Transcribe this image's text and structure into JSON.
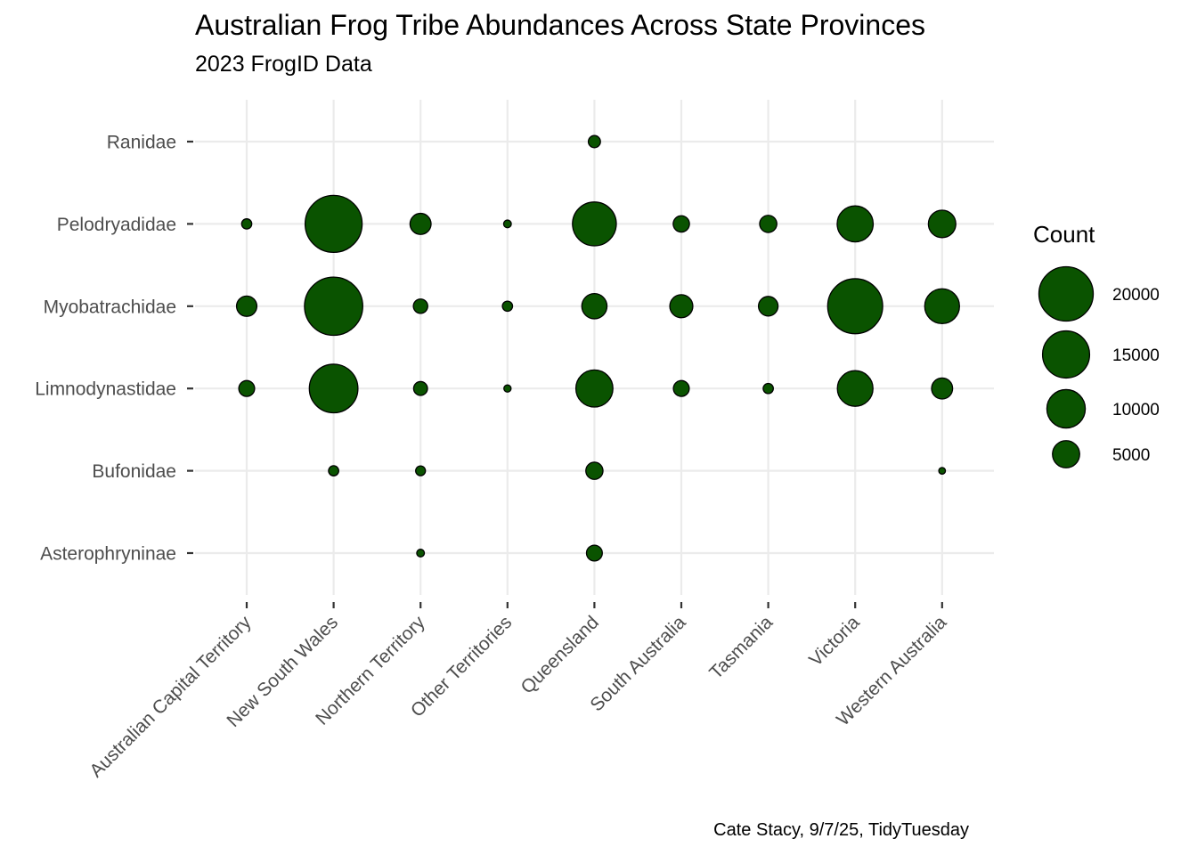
{
  "chart_data": {
    "type": "scatter",
    "title": "Australian Frog Tribe Abundances Across State Provinces",
    "subtitle": "2023 FrogID Data",
    "caption": "Cate Stacy, 9/7/25, TidyTuesday",
    "x_categories": [
      "Australian Capital Territory",
      "New South Wales",
      "Northern Territory",
      "Other Territories",
      "Queensland",
      "South Australia",
      "Tasmania",
      "Victoria",
      "Western Australia"
    ],
    "y_categories": [
      "Asterophryninae",
      "Bufonidae",
      "Limnodynastidae",
      "Myobatrachidae",
      "Pelodryadidae",
      "Ranidae"
    ],
    "size_legend": {
      "title": "Count",
      "breaks": [
        5000,
        10000,
        15000,
        20000
      ]
    },
    "points": [
      {
        "x": "Queensland",
        "y": "Ranidae",
        "count": 1000
      },
      {
        "x": "Australian Capital Territory",
        "y": "Pelodryadidae",
        "count": 700
      },
      {
        "x": "New South Wales",
        "y": "Pelodryadidae",
        "count": 22000
      },
      {
        "x": "Northern Territory",
        "y": "Pelodryadidae",
        "count": 3000
      },
      {
        "x": "Other Territories",
        "y": "Pelodryadidae",
        "count": 400
      },
      {
        "x": "Queensland",
        "y": "Pelodryadidae",
        "count": 13000
      },
      {
        "x": "South Australia",
        "y": "Pelodryadidae",
        "count": 1800
      },
      {
        "x": "Tasmania",
        "y": "Pelodryadidae",
        "count": 2000
      },
      {
        "x": "Victoria",
        "y": "Pelodryadidae",
        "count": 8800
      },
      {
        "x": "Western Australia",
        "y": "Pelodryadidae",
        "count": 5100
      },
      {
        "x": "Australian Capital Territory",
        "y": "Myobatrachidae",
        "count": 2800
      },
      {
        "x": "New South Wales",
        "y": "Myobatrachidae",
        "count": 23000
      },
      {
        "x": "Northern Territory",
        "y": "Myobatrachidae",
        "count": 1400
      },
      {
        "x": "Other Territories",
        "y": "Myobatrachidae",
        "count": 700
      },
      {
        "x": "Queensland",
        "y": "Myobatrachidae",
        "count": 4300
      },
      {
        "x": "South Australia",
        "y": "Myobatrachidae",
        "count": 3600
      },
      {
        "x": "Tasmania",
        "y": "Myobatrachidae",
        "count": 2600
      },
      {
        "x": "Victoria",
        "y": "Myobatrachidae",
        "count": 20500
      },
      {
        "x": "Western Australia",
        "y": "Myobatrachidae",
        "count": 8200
      },
      {
        "x": "Australian Capital Territory",
        "y": "Limnodynastidae",
        "count": 1700
      },
      {
        "x": "New South Wales",
        "y": "Limnodynastidae",
        "count": 16000
      },
      {
        "x": "Northern Territory",
        "y": "Limnodynastidae",
        "count": 1300
      },
      {
        "x": "Other Territories",
        "y": "Limnodynastidae",
        "count": 350
      },
      {
        "x": "Queensland",
        "y": "Limnodynastidae",
        "count": 9300
      },
      {
        "x": "South Australia",
        "y": "Limnodynastidae",
        "count": 1700
      },
      {
        "x": "Tasmania",
        "y": "Limnodynastidae",
        "count": 700
      },
      {
        "x": "Victoria",
        "y": "Limnodynastidae",
        "count": 8600
      },
      {
        "x": "Western Australia",
        "y": "Limnodynastidae",
        "count": 3000
      },
      {
        "x": "New South Wales",
        "y": "Bufonidae",
        "count": 700
      },
      {
        "x": "Northern Territory",
        "y": "Bufonidae",
        "count": 650
      },
      {
        "x": "Queensland",
        "y": "Bufonidae",
        "count": 2000
      },
      {
        "x": "Western Australia",
        "y": "Bufonidae",
        "count": 300
      },
      {
        "x": "Northern Territory",
        "y": "Asterophryninae",
        "count": 400
      },
      {
        "x": "Queensland",
        "y": "Asterophryninae",
        "count": 1700
      }
    ],
    "point_color": "#0a5300",
    "point_outline": "#000000",
    "grid_color": "#ebebeb",
    "grid": true,
    "legend_position": "right"
  }
}
